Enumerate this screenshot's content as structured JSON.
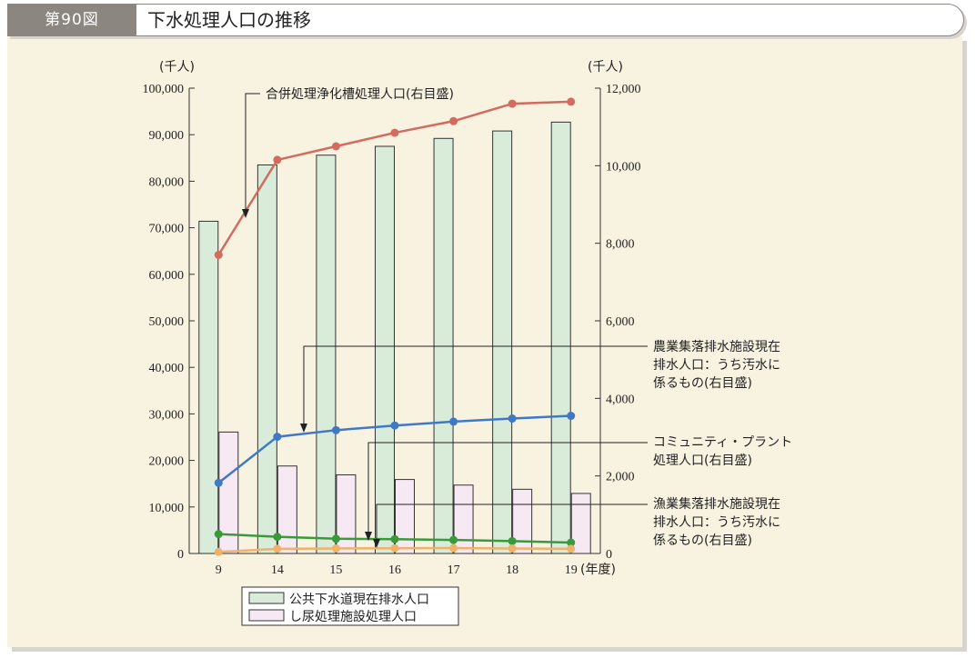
{
  "figure": {
    "number": "第90図",
    "title": "下水処理人口の推移"
  },
  "chart_data": {
    "type": "bar",
    "categories": [
      "9",
      "14",
      "15",
      "16",
      "17",
      "18",
      "19"
    ],
    "x_unit": "(年度)",
    "left_axis": {
      "unit": "(千人)",
      "range": [
        0,
        100000
      ],
      "ticks": [
        "0",
        "10,000",
        "20,000",
        "30,000",
        "40,000",
        "50,000",
        "60,000",
        "70,000",
        "80,000",
        "90,000",
        "100,000"
      ]
    },
    "right_axis": {
      "unit": "(千人)",
      "range": [
        0,
        12000
      ],
      "ticks": [
        "0",
        "2,000",
        "4,000",
        "6,000",
        "8,000",
        "10,000",
        "12,000"
      ]
    },
    "bar_series": [
      {
        "name": "公共下水道現在排水人口",
        "axis": "left",
        "color": "#d9ecd9",
        "values": [
          71400,
          83500,
          85600,
          87500,
          89200,
          90800,
          92700
        ]
      },
      {
        "name": "し尿処理施設処理人口",
        "axis": "left",
        "color": "#f7e9f4",
        "values": [
          26100,
          18800,
          16900,
          15900,
          14700,
          13800,
          12900
        ]
      }
    ],
    "line_series": [
      {
        "name": "合併処理浄化槽処理人口(右目盛)",
        "axis": "right",
        "color": "#d36b5e",
        "values": [
          7700,
          10150,
          10500,
          10850,
          11150,
          11600,
          11650
        ]
      },
      {
        "name": "農業集落排水施設現在排水人口:うち汚水に係るもの(右目盛)",
        "axis": "right",
        "color": "#3f79c6",
        "values": [
          1820,
          3010,
          3180,
          3300,
          3400,
          3480,
          3550
        ]
      },
      {
        "name": "漁業集落排水施設現在排水人口:うち汚水に係るもの(右目盛)",
        "axis": "right",
        "color": "#3a9a3a",
        "values": [
          500,
          430,
          380,
          370,
          350,
          320,
          280
        ]
      },
      {
        "name": "コミュニティ・プラント処理人口(右目盛)",
        "axis": "right",
        "color": "#f0b26a",
        "values": [
          40,
          120,
          130,
          135,
          140,
          130,
          120
        ]
      }
    ],
    "annotations": {
      "septic": "合併処理浄化槽処理人口(右目盛)",
      "agri": [
        "農業集落排水施設現在",
        "排水人口：うち汚水に",
        "係るもの(右目盛)"
      ],
      "community": [
        "コミュニティ・プラント",
        "処理人口(右目盛)"
      ],
      "fishery": [
        "漁業集落排水施設現在",
        "排水人口：うち汚水に",
        "係るもの(右目盛)"
      ]
    },
    "legend": {
      "position": "bottom",
      "entries": [
        "公共下水道現在排水人口",
        "し尿処理施設処理人口"
      ]
    }
  }
}
